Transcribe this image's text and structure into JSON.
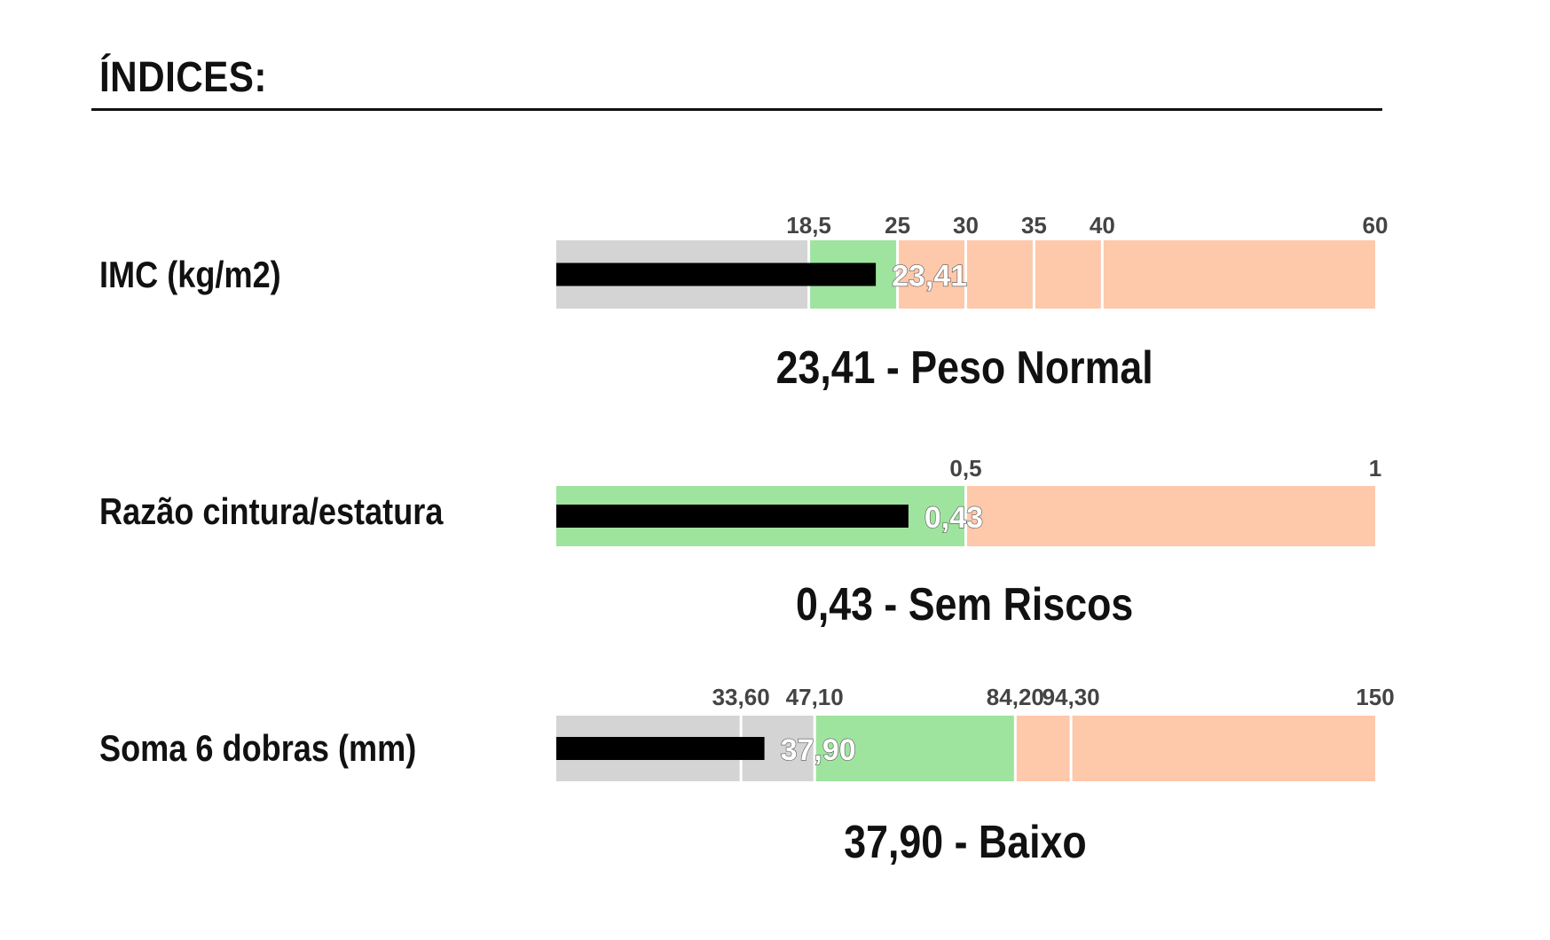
{
  "heading": "ÍNDICES:",
  "colors": {
    "low": "#d4d4d4",
    "normal": "#9ee49e",
    "high": "#fec8aa",
    "marker": "#000000"
  },
  "chart_data": [
    {
      "type": "bullet",
      "label": "IMC (kg/m2)",
      "value": 23.41,
      "value_label": "23,41",
      "result": "23,41 - Peso Normal",
      "xlim": [
        0,
        60
      ],
      "ticks": [
        {
          "value": 18.5,
          "label": "18,5"
        },
        {
          "value": 25,
          "label": "25"
        },
        {
          "value": 30,
          "label": "30"
        },
        {
          "value": 35,
          "label": "35"
        },
        {
          "value": 40,
          "label": "40"
        },
        {
          "value": 60,
          "label": "60"
        }
      ],
      "bands": [
        {
          "from": 0,
          "to": 18.5,
          "zone": "low"
        },
        {
          "from": 18.5,
          "to": 25,
          "zone": "normal"
        },
        {
          "from": 25,
          "to": 30,
          "zone": "high"
        },
        {
          "from": 30,
          "to": 35,
          "zone": "high"
        },
        {
          "from": 35,
          "to": 40,
          "zone": "high"
        },
        {
          "from": 40,
          "to": 60,
          "zone": "high"
        }
      ]
    },
    {
      "type": "bullet",
      "label": "Razão cintura/estatura",
      "value": 0.43,
      "value_label": "0,43",
      "result": "0,43 - Sem Riscos",
      "xlim": [
        0,
        1
      ],
      "ticks": [
        {
          "value": 0.5,
          "label": "0,5"
        },
        {
          "value": 1,
          "label": "1"
        }
      ],
      "bands": [
        {
          "from": 0,
          "to": 0.5,
          "zone": "normal"
        },
        {
          "from": 0.5,
          "to": 1,
          "zone": "high"
        }
      ]
    },
    {
      "type": "bullet",
      "label": "Soma 6 dobras (mm)",
      "value": 37.9,
      "value_label": "37,90",
      "result": "37,90 - Baixo",
      "xlim": [
        0,
        150
      ],
      "scale": "piecewise",
      "ticks": [
        {
          "value": 33.6,
          "label": "33,60"
        },
        {
          "value": 47.1,
          "label": "47,10"
        },
        {
          "value": 84.2,
          "label": "84,20"
        },
        {
          "value": 94.3,
          "label": "94,30"
        },
        {
          "value": 150,
          "label": "150"
        }
      ],
      "bands": [
        {
          "from": 0,
          "to": 33.6,
          "zone": "low"
        },
        {
          "from": 33.6,
          "to": 47.1,
          "zone": "low"
        },
        {
          "from": 47.1,
          "to": 84.2,
          "zone": "normal"
        },
        {
          "from": 84.2,
          "to": 94.3,
          "zone": "high"
        },
        {
          "from": 94.3,
          "to": 150,
          "zone": "high"
        }
      ]
    }
  ]
}
